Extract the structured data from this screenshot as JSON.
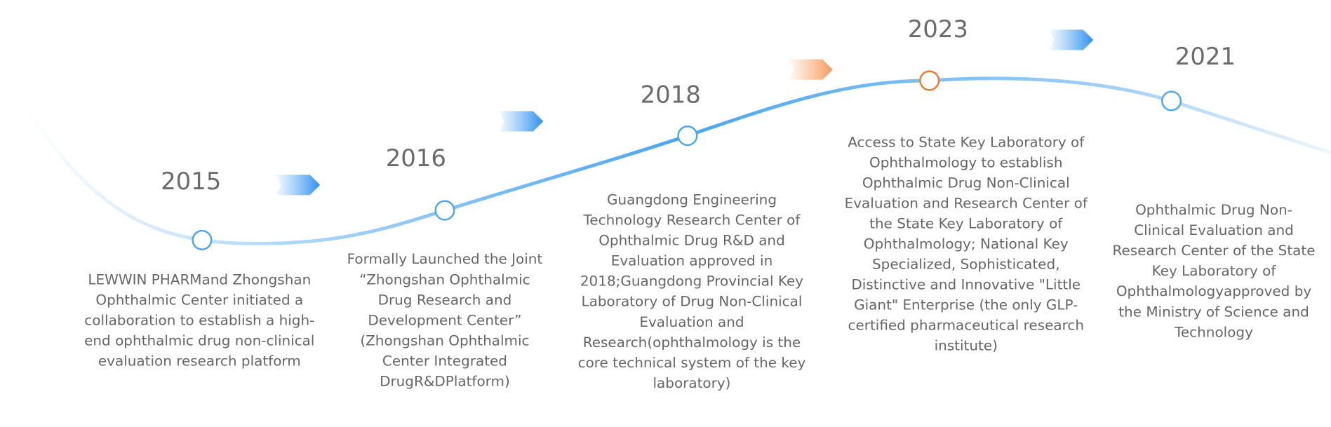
{
  "colors": {
    "line": "#4aa6f0",
    "node": "#4aa6f0",
    "highlight": "#ee7a30",
    "text": "#666666"
  },
  "milestones": [
    {
      "year": "2015",
      "text": "LEWWIN PHARMand Zhongshan Ophthalmic Center initiated a collaboration to establish a high-end ophthalmic drug non-clinical evaluation research platform"
    },
    {
      "year": "2016",
      "text": "Formally Launched the Joint “Zhongshan Ophthalmic Drug Research and Development Center” (Zhongshan Ophthalmic Center Integrated DrugR&DPlatform)"
    },
    {
      "year": "2018",
      "text": "Guangdong Engineering Technology Research Center of Ophthalmic Drug R&D and Evaluation approved in 2018;Guangdong Provincial Key Laboratory of Drug Non-Clinical Evaluation and Research(ophthalmology is the core technical system of the key laboratory)"
    },
    {
      "year": "2023",
      "text": "Access to State Key Laboratory of Ophthalmology to establish Ophthalmic Drug Non-Clinical Evaluation and Research Center of the State Key Laboratory of Ophthalmology; National Key Specialized, Sophisticated, Distinctive and Innovative \"Little Giant\" Enterprise (the only GLP-certified pharmaceutical research institute)"
    },
    {
      "year": "2021",
      "text": "Ophthalmic Drug Non-Clinical Evaluation and Research Center of the State Key Laboratory of Ophthalmologyapproved by the Ministry of Science and Technology"
    }
  ]
}
